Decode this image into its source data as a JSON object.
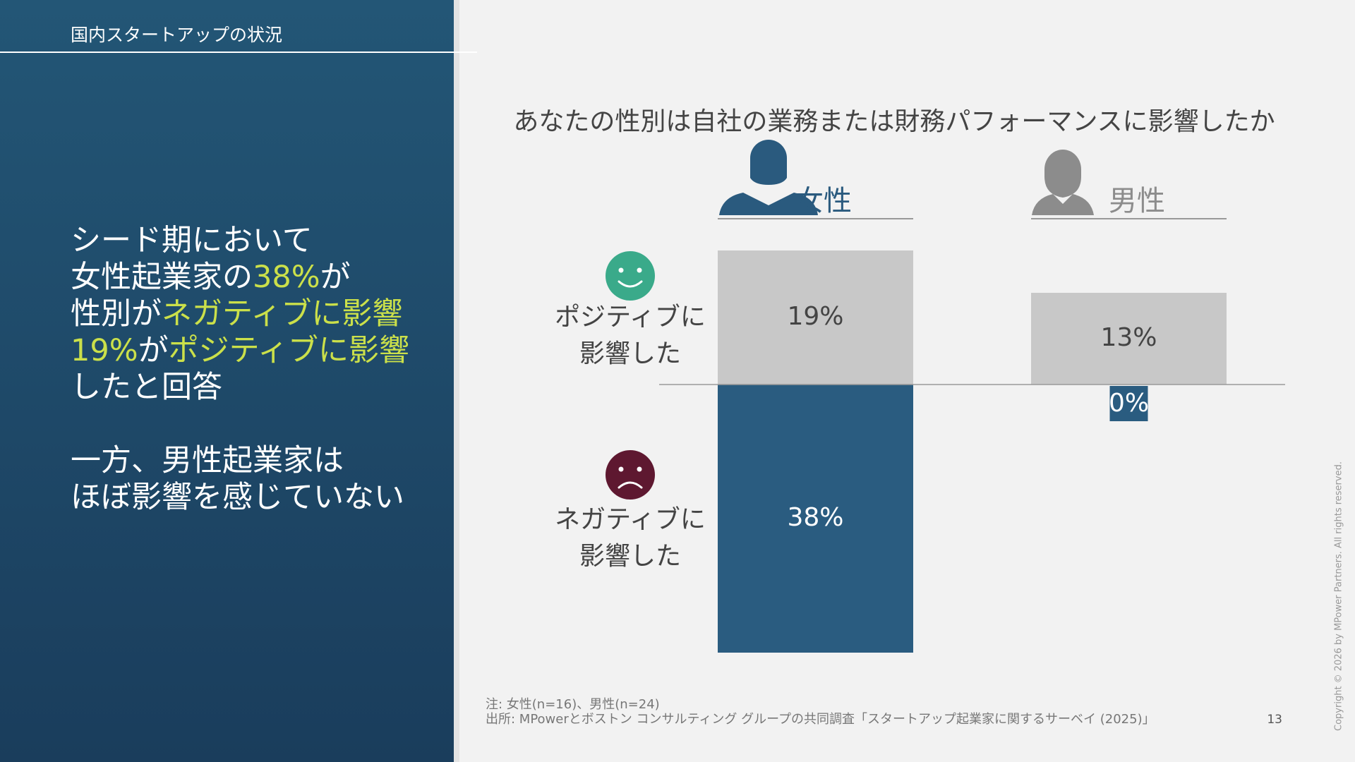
{
  "header": {
    "section": "国内スタートアップの状況"
  },
  "headline": {
    "color": "#ffffff",
    "highlight_color": "#cbe04a",
    "paragraphs": [
      [
        [
          {
            "text": "シード期において"
          }
        ],
        [
          {
            "text": "女性起業家の"
          },
          {
            "text": "38%",
            "highlight": true
          },
          {
            "text": "が"
          }
        ],
        [
          {
            "text": "性別が"
          },
          {
            "text": "ネガティブに影響",
            "highlight": true
          }
        ],
        [
          {
            "text": "19%",
            "highlight": true
          },
          {
            "text": "が"
          },
          {
            "text": "ポジティブに影響",
            "highlight": true
          }
        ],
        [
          {
            "text": "したと回答"
          }
        ]
      ],
      [
        [
          {
            "text": "一方、男性起業家は"
          }
        ],
        [
          {
            "text": "ほぼ影響を感じていない"
          }
        ]
      ]
    ]
  },
  "chart_data": {
    "type": "diverging_bar",
    "title": "あなたの性別は自社の業務または財務パフォーマンスに影響したか",
    "categories": [
      "女性",
      "男性"
    ],
    "category_colors": [
      "#2a5a7e",
      "#8c8c8c"
    ],
    "series": [
      {
        "label_lines": [
          "ポジティブに",
          "影響した"
        ],
        "color": "#c8c8c8",
        "direction": "up",
        "icon": "smile",
        "icon_color": "#3aaa8a",
        "label_color": "#444444",
        "values": [
          19,
          13
        ],
        "value_labels": [
          "19%",
          "13%"
        ]
      },
      {
        "label_lines": [
          "ネガティブに",
          "影響した"
        ],
        "color": "#2a5c80",
        "direction": "down",
        "icon": "frown",
        "icon_color": "#5e1830",
        "label_color": "#ffffff",
        "values": [
          38,
          0
        ],
        "value_labels": [
          "38%",
          "0%"
        ]
      }
    ]
  },
  "footer": {
    "notes": [
      "注: 女性(n=16)、男性(n=24)",
      "出所: MPowerとボストン コンサルティング グループの共同調査「スタートアップ起業家に関するサーベイ (2025)」"
    ],
    "page": "13",
    "copyright": "Copyright © 2026 by MPower Partners. All rights reserved."
  }
}
